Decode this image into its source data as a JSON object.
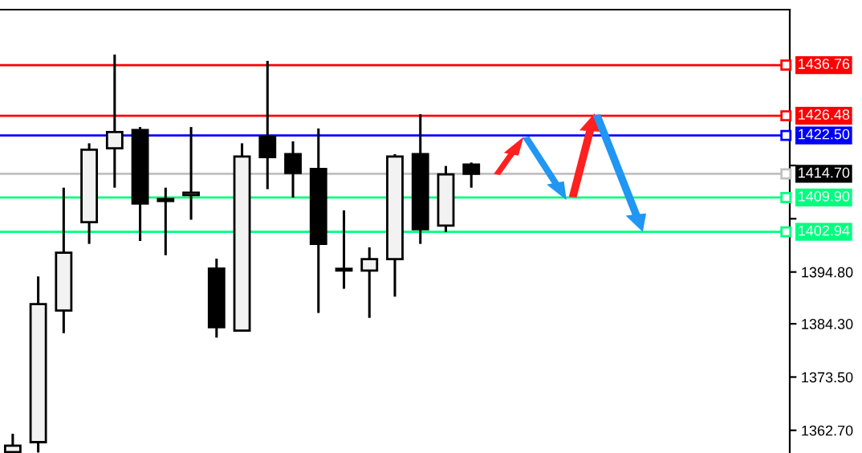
{
  "chart_data": {
    "type": "candlestick",
    "categories": [
      null,
      null,
      null,
      null,
      null,
      null,
      null,
      null,
      null,
      null,
      null,
      null,
      null,
      null,
      null,
      null,
      null,
      null,
      null,
      null,
      null,
      null,
      null,
      null,
      null,
      null,
      null,
      null,
      null,
      null,
      null
    ],
    "ohlc": [
      [
        1358.3,
        1362.0,
        1358.2,
        1359.6
      ],
      [
        1360.3,
        1393.9,
        1358.2,
        1388.3
      ],
      [
        1387.0,
        1411.9,
        1382.4,
        1398.7
      ],
      [
        1404.9,
        1420.9,
        1400.5,
        1419.6
      ],
      [
        1419.9,
        1438.9,
        1411.9,
        1423.2
      ],
      [
        1423.6,
        1424.2,
        1401.1,
        1408.7
      ],
      [
        1409.6,
        1411.9,
        1398.2,
        1409.2
      ],
      [
        1410.4,
        1424.2,
        1405.4,
        1410.9
      ],
      [
        1395.5,
        1397.5,
        1381.5,
        1383.6
      ],
      [
        1382.9,
        1420.9,
        1382.9,
        1418.2
      ],
      [
        1422.2,
        1437.6,
        1411.6,
        1418.1
      ],
      [
        1418.7,
        1421.3,
        1409.9,
        1414.9
      ],
      [
        1415.7,
        1423.9,
        1386.5,
        1400.5
      ],
      [
        1395.3,
        1407.3,
        1391.4,
        1395.1
      ],
      [
        1395.1,
        1399.8,
        1385.5,
        1397.4
      ],
      [
        1397.4,
        1418.7,
        1389.8,
        1418.2
      ],
      [
        1418.7,
        1426.8,
        1400.5,
        1403.5
      ],
      [
        1404.2,
        1416.3,
        1402.9,
        1414.6
      ],
      [
        1416.6,
        1417.0,
        1411.9,
        1414.7
      ],
      null,
      null,
      null,
      null,
      null,
      null,
      null,
      null,
      null,
      null,
      null,
      null
    ],
    "ylim": [
      1358.1,
      1448.0
    ],
    "yticks": [
      {
        "value": 1416.4,
        "label": null
      },
      {
        "value": 1405.6,
        "label": null
      },
      {
        "value": 1394.8,
        "label": "1394.80"
      },
      {
        "value": 1384.3,
        "label": "1384.30"
      },
      {
        "value": 1373.5,
        "label": "1373.50"
      },
      {
        "value": 1362.7,
        "label": "1362.70"
      }
    ],
    "tick_labels": "y",
    "grid": false,
    "ref_lines": [
      {
        "axis": "y",
        "value": 1436.76,
        "label": "1436.76",
        "color": "#ff0000"
      },
      {
        "axis": "y",
        "value": 1426.48,
        "label": "1426.48",
        "color": "#ff0000"
      },
      {
        "axis": "y",
        "value": 1422.5,
        "label": "1422.50",
        "color": "#0000ff"
      },
      {
        "axis": "y",
        "value": 1414.7,
        "label": "1414.70",
        "color": "#c0c0c0"
      },
      {
        "axis": "y",
        "value": 1409.9,
        "label": "1409.90",
        "color": "#00ff7f"
      },
      {
        "axis": "y",
        "value": 1402.94,
        "label": "1402.94",
        "color": "#00ff7f"
      }
    ]
  }
}
